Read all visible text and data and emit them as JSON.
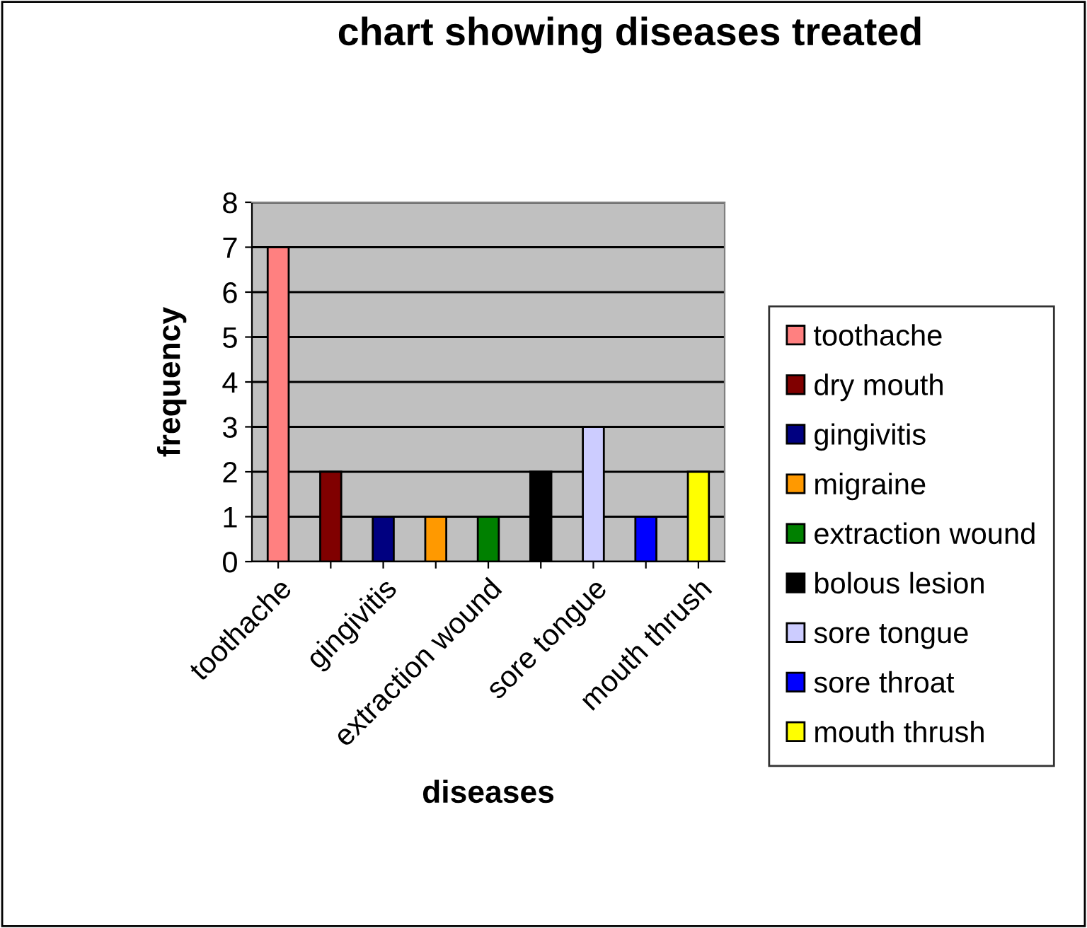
{
  "chart_data": {
    "type": "bar",
    "title": "chart showing diseases treated",
    "xlabel": "diseases",
    "ylabel": "frequency",
    "categories": [
      "toothache",
      null,
      "gingivitis",
      null,
      "extraction wound",
      null,
      "sore tongue",
      null,
      "mouth thrush"
    ],
    "series": [
      {
        "name": "toothache",
        "color": "#ff8080",
        "values": [
          7,
          null,
          null,
          null,
          null,
          null,
          null,
          null,
          null
        ]
      },
      {
        "name": "dry mouth",
        "color": "#800000",
        "values": [
          null,
          2,
          null,
          null,
          null,
          null,
          null,
          null,
          null
        ]
      },
      {
        "name": "gingivitis",
        "color": "#000080",
        "values": [
          null,
          null,
          1,
          null,
          null,
          null,
          null,
          null,
          null
        ]
      },
      {
        "name": "migraine",
        "color": "#ff9900",
        "values": [
          null,
          null,
          null,
          1,
          null,
          null,
          null,
          null,
          null
        ]
      },
      {
        "name": "extraction wound",
        "color": "#008000",
        "values": [
          null,
          null,
          null,
          null,
          1,
          null,
          null,
          null,
          null
        ]
      },
      {
        "name": "bolous lesion",
        "color": "#000000",
        "values": [
          null,
          null,
          null,
          null,
          null,
          2,
          null,
          null,
          null
        ]
      },
      {
        "name": "sore tongue",
        "color": "#ccccff",
        "values": [
          null,
          null,
          null,
          null,
          null,
          null,
          3,
          null,
          null
        ]
      },
      {
        "name": "sore throat",
        "color": "#0000ff",
        "values": [
          null,
          null,
          null,
          null,
          null,
          null,
          null,
          1,
          null
        ]
      },
      {
        "name": "mouth thrush",
        "color": "#ffff00",
        "values": [
          null,
          null,
          null,
          null,
          null,
          null,
          null,
          null,
          2
        ]
      }
    ],
    "ylim": [
      0,
      8
    ],
    "yticks": [
      0,
      1,
      2,
      3,
      4,
      5,
      6,
      7,
      8
    ],
    "grid": "y",
    "legend": "right"
  }
}
